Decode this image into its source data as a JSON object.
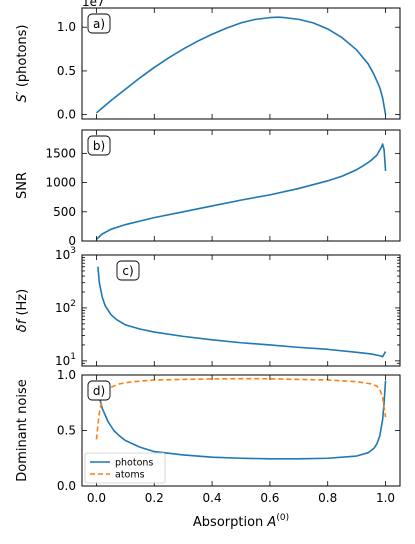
{
  "chart_data": {
    "type": "line",
    "xlabel": "Absorption A^(0)",
    "xlabel_main": "Absorption ",
    "xlabel_var": "A",
    "xlabel_sup": "(0)",
    "xlim": [
      -0.05,
      1.05
    ],
    "xticks": [
      "0.0",
      "0.2",
      "0.4",
      "0.6",
      "0.8",
      "1.0"
    ],
    "panels": [
      {
        "label": "a)",
        "ylabel": "S′ (photons)",
        "ylabel_var": "S′",
        "ylabel_unit": " (photons)",
        "offset_text": "1e7",
        "ylim": [
          -0.05,
          1.22
        ],
        "yscale": "linear",
        "yticks": [
          {
            "v": 0.0,
            "t": "0.0"
          },
          {
            "v": 0.5,
            "t": "0.5"
          },
          {
            "v": 1.0,
            "t": "1.0"
          }
        ],
        "series": [
          {
            "color": "#1f77b4",
            "style": "solid",
            "x": [
              0.0,
              0.05,
              0.1,
              0.15,
              0.2,
              0.25,
              0.3,
              0.35,
              0.4,
              0.45,
              0.5,
              0.55,
              0.6,
              0.63,
              0.65,
              0.7,
              0.75,
              0.8,
              0.85,
              0.9,
              0.94,
              0.96,
              0.98,
              0.99,
              1.0
            ],
            "y": [
              0.02,
              0.16,
              0.29,
              0.42,
              0.54,
              0.65,
              0.75,
              0.84,
              0.92,
              0.99,
              1.05,
              1.09,
              1.11,
              1.115,
              1.11,
              1.09,
              1.05,
              0.98,
              0.88,
              0.74,
              0.58,
              0.46,
              0.31,
              0.19,
              0.0
            ]
          }
        ]
      },
      {
        "label": "b)",
        "ylabel": "SNR",
        "ylabel_var": "",
        "ylabel_unit": "SNR",
        "offset_text": "",
        "ylim": [
          0,
          1900
        ],
        "yscale": "linear",
        "yticks": [
          {
            "v": 0,
            "t": "0"
          },
          {
            "v": 500,
            "t": "500"
          },
          {
            "v": 1000,
            "t": "1000"
          },
          {
            "v": 1500,
            "t": "1500"
          }
        ],
        "series": [
          {
            "color": "#1f77b4",
            "style": "solid",
            "x": [
              0.0,
              0.02,
              0.05,
              0.1,
              0.15,
              0.2,
              0.3,
              0.4,
              0.5,
              0.6,
              0.7,
              0.8,
              0.85,
              0.9,
              0.93,
              0.95,
              0.97,
              0.985,
              0.99,
              0.995,
              1.0
            ],
            "y": [
              30,
              120,
              200,
              280,
              340,
              400,
              500,
              600,
              700,
              790,
              900,
              1030,
              1110,
              1220,
              1310,
              1380,
              1470,
              1600,
              1660,
              1560,
              1200
            ]
          }
        ]
      },
      {
        "label": "c)",
        "ylabel": "δf (Hz)",
        "ylabel_var": "δf",
        "ylabel_unit": " (Hz)",
        "offset_text": "",
        "ylim": [
          8,
          1000
        ],
        "yscale": "log",
        "yticks": [
          {
            "v": 10,
            "t": "10",
            "exp": "1"
          },
          {
            "v": 100,
            "t": "10",
            "exp": "2"
          },
          {
            "v": 1000,
            "t": "10",
            "exp": "3"
          }
        ],
        "series": [
          {
            "color": "#1f77b4",
            "style": "solid",
            "x": [
              0.005,
              0.01,
              0.02,
              0.03,
              0.05,
              0.07,
              0.1,
              0.15,
              0.2,
              0.3,
              0.4,
              0.5,
              0.6,
              0.7,
              0.8,
              0.9,
              0.95,
              0.98,
              0.99,
              1.0
            ],
            "y": [
              600,
              300,
              160,
              110,
              75,
              60,
              48,
              40,
              35,
              29,
              25,
              22,
              20,
              18,
              16.5,
              14.5,
              13.5,
              12.5,
              12,
              15
            ]
          }
        ]
      },
      {
        "label": "d)",
        "ylabel": "Dominant noise",
        "ylabel_var": "",
        "ylabel_unit": "Dominant noise",
        "offset_text": "",
        "ylim": [
          0,
          1.0
        ],
        "yscale": "linear",
        "yticks": [
          {
            "v": 0.0,
            "t": "0.0"
          },
          {
            "v": 0.5,
            "t": "0.5"
          },
          {
            "v": 1.0,
            "t": "1.0"
          }
        ],
        "legend": "lower left",
        "series": [
          {
            "name": "photons",
            "color": "#1f77b4",
            "style": "solid",
            "x": [
              0.0,
              0.01,
              0.02,
              0.04,
              0.06,
              0.08,
              0.1,
              0.15,
              0.2,
              0.3,
              0.4,
              0.5,
              0.6,
              0.7,
              0.8,
              0.9,
              0.94,
              0.96,
              0.97,
              0.98,
              0.99,
              0.995,
              1.0
            ],
            "y": [
              0.93,
              0.8,
              0.7,
              0.58,
              0.5,
              0.45,
              0.41,
              0.35,
              0.31,
              0.28,
              0.26,
              0.25,
              0.245,
              0.245,
              0.25,
              0.27,
              0.3,
              0.34,
              0.38,
              0.45,
              0.6,
              0.75,
              0.95
            ]
          },
          {
            "name": "atoms",
            "color": "#ff7f0e",
            "style": "dashed",
            "x": [
              0.0,
              0.005,
              0.01,
              0.02,
              0.03,
              0.05,
              0.08,
              0.1,
              0.15,
              0.2,
              0.3,
              0.4,
              0.5,
              0.6,
              0.7,
              0.8,
              0.9,
              0.95,
              0.97,
              0.98,
              0.99,
              1.0
            ],
            "y": [
              0.42,
              0.55,
              0.66,
              0.78,
              0.84,
              0.89,
              0.92,
              0.93,
              0.945,
              0.955,
              0.96,
              0.965,
              0.967,
              0.966,
              0.96,
              0.955,
              0.94,
              0.92,
              0.9,
              0.87,
              0.8,
              0.62
            ]
          }
        ]
      }
    ]
  }
}
